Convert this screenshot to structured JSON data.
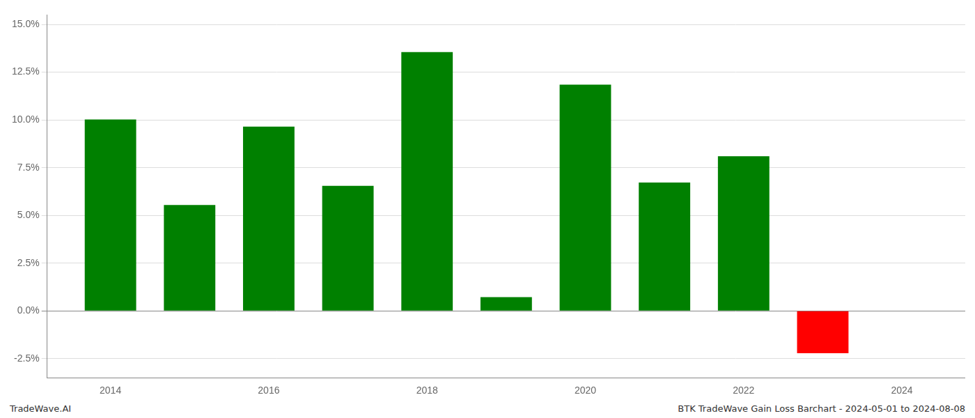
{
  "chart_data": {
    "type": "bar",
    "x": [
      2014,
      2015,
      2016,
      2017,
      2018,
      2019,
      2020,
      2021,
      2022,
      2023
    ],
    "values": [
      10.02,
      5.55,
      9.65,
      6.55,
      13.55,
      0.72,
      11.85,
      6.72,
      8.1,
      -2.22
    ],
    "colors": [
      "#008000",
      "#008000",
      "#008000",
      "#008000",
      "#008000",
      "#008000",
      "#008000",
      "#008000",
      "#008000",
      "#ff0000"
    ],
    "xlim": [
      2013.2,
      2024.8
    ],
    "xticks": [
      2014,
      2016,
      2018,
      2020,
      2022,
      2024
    ],
    "ylim": [
      -3.5,
      15.5
    ],
    "yticks": [
      {
        "value": -2.5,
        "label": "-2.5%"
      },
      {
        "value": 0,
        "label": "0.0%"
      },
      {
        "value": 2.5,
        "label": "2.5%"
      },
      {
        "value": 5,
        "label": "5.0%"
      },
      {
        "value": 7.5,
        "label": "7.5%"
      },
      {
        "value": 10,
        "label": "10.0%"
      },
      {
        "value": 12.5,
        "label": "12.5%"
      },
      {
        "value": 15,
        "label": "15.0%"
      }
    ],
    "grid": true,
    "annotations": [
      "TradeWave.AI",
      "BTK TradeWave Gain Loss Barchart - 2024-05-01 to 2024-08-08"
    ]
  }
}
